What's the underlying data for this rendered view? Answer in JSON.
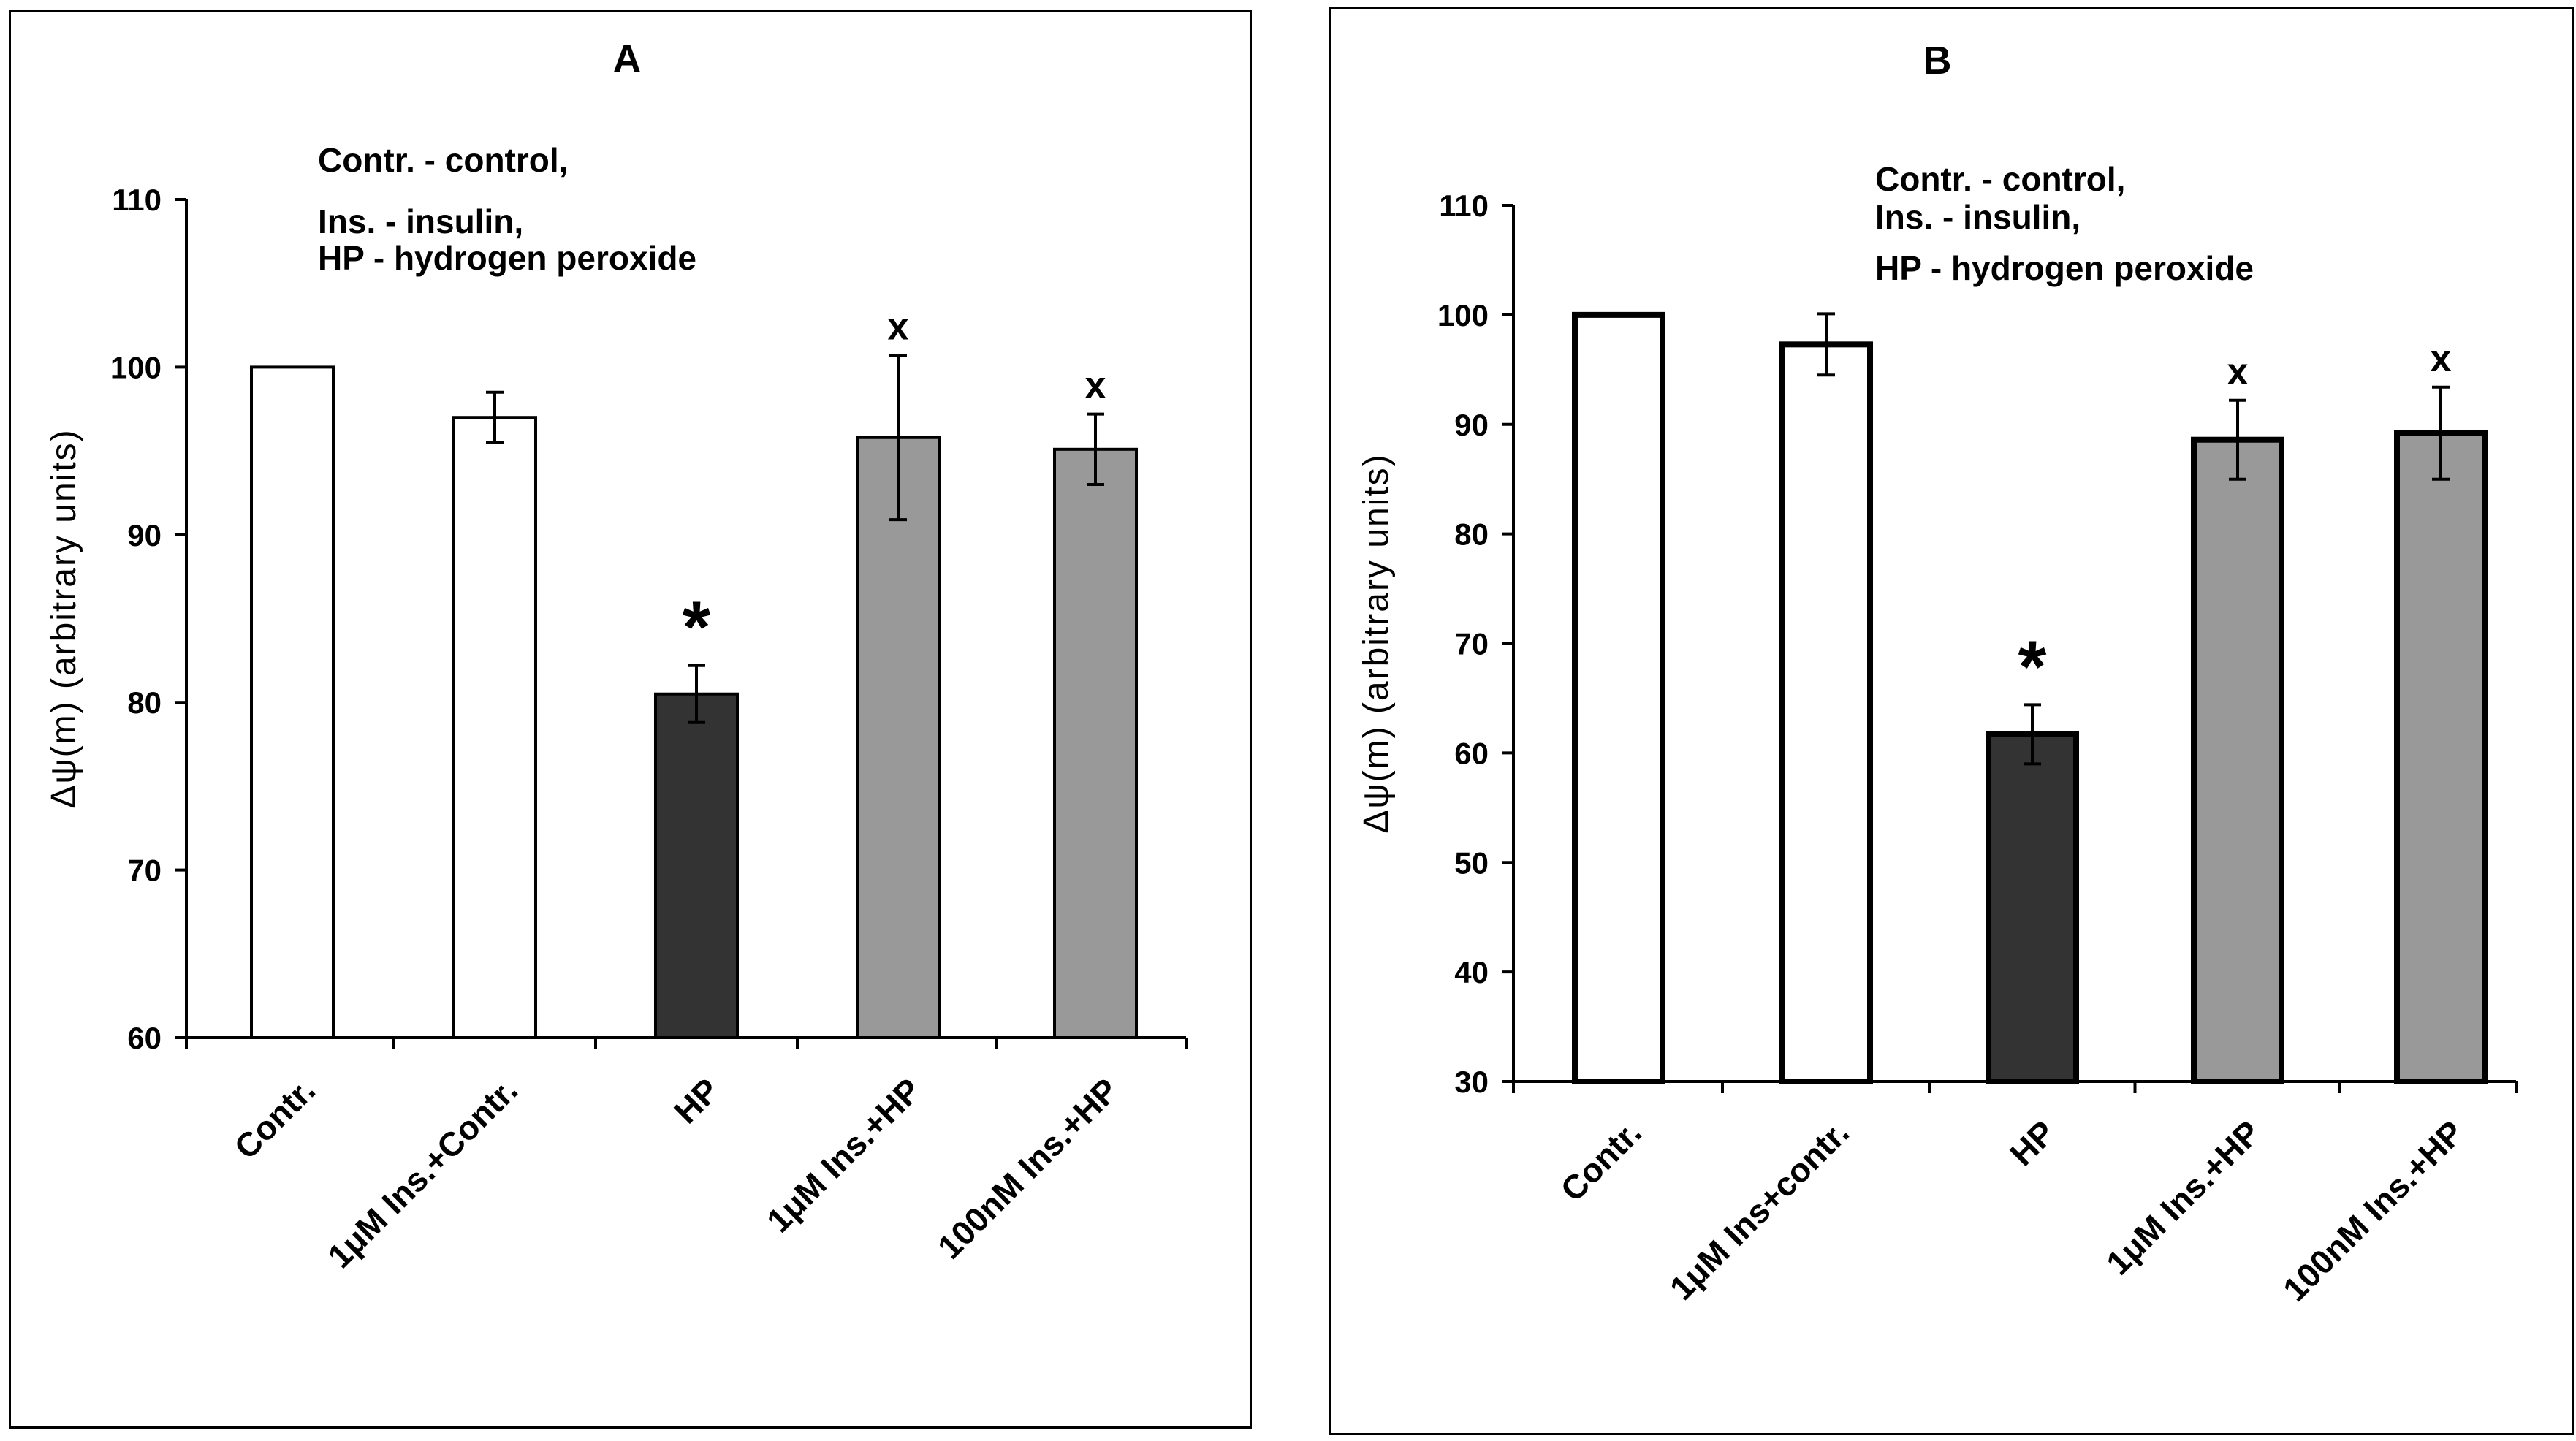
{
  "chart_data": [
    {
      "type": "bar",
      "title": "A",
      "ylabel": "Δψ(m) (arbitrary units)",
      "xlabel": "",
      "ylim": [
        60,
        110
      ],
      "yticks": [
        60,
        70,
        80,
        90,
        100,
        110
      ],
      "grid": false,
      "legend_lines": [
        "Contr. - control,",
        "Ins. - insulin,",
        "HP - hydrogen peroxide"
      ],
      "categories": [
        "Contr.",
        "1μM Ins.+Contr.",
        "HP",
        "1μM Ins.+HP",
        "100nM Ins.+HP"
      ],
      "values": [
        100,
        97,
        80.5,
        95.8,
        95.1
      ],
      "errors": [
        0,
        1.5,
        1.7,
        4.9,
        2.1
      ],
      "fills": [
        "#ffffff",
        "#ffffff",
        "#333333",
        "#999999",
        "#999999"
      ],
      "annotations": [
        "",
        "",
        "*",
        "x",
        "x"
      ]
    },
    {
      "type": "bar",
      "title": "B",
      "ylabel": "Δψ(m) (arbitrary units)",
      "xlabel": "",
      "ylim": [
        30,
        110
      ],
      "yticks": [
        30,
        40,
        50,
        60,
        70,
        80,
        90,
        100,
        110
      ],
      "grid": false,
      "legend_lines": [
        "Contr. - control,",
        "Ins. - insulin,",
        "HP - hydrogen peroxide"
      ],
      "categories": [
        "Contr.",
        "1μM Ins+contr.",
        "HP",
        "1μM Ins.+HP",
        "100nM Ins.+HP"
      ],
      "values": [
        100,
        97.3,
        61.7,
        88.6,
        89.2
      ],
      "errors": [
        0,
        2.8,
        2.7,
        3.6,
        4.2
      ],
      "fills": [
        "#ffffff",
        "#ffffff",
        "#333333",
        "#999999",
        "#999999"
      ],
      "annotations": [
        "",
        "",
        "*",
        "x",
        "x"
      ]
    }
  ]
}
